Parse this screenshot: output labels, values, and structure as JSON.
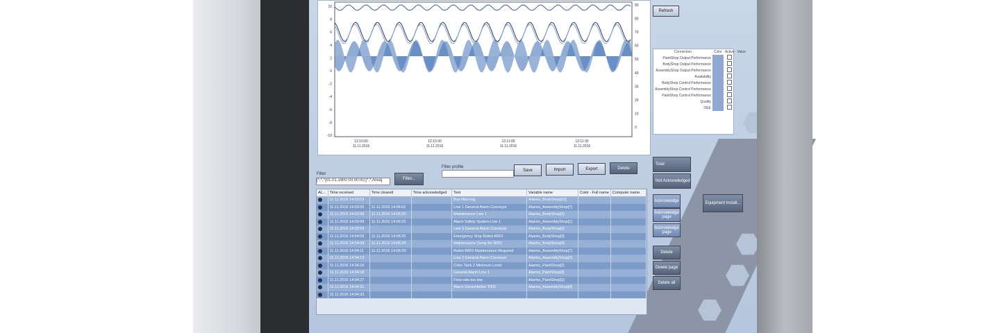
{
  "trend": {
    "y_left_labels": [
      "10",
      "8",
      "6",
      "4",
      "2",
      "0",
      "-2",
      "-4",
      "-6",
      "-8",
      "-10"
    ],
    "y_right_labels": [
      "90",
      "80",
      "70",
      "60",
      "50",
      "40",
      "30",
      "20",
      "10",
      "0"
    ],
    "x_labels": [
      {
        "time": "12:10:00",
        "date": "11.11.2016"
      },
      {
        "time": "12:10:30",
        "date": "11.11.2016"
      },
      {
        "time": "12:11:00",
        "date": "11.11.2016"
      },
      {
        "time": "12:11:30",
        "date": "11.11.2016"
      }
    ]
  },
  "trend_controls": {
    "refresh": "Refresh"
  },
  "legend_table": {
    "headers": [
      "Connection",
      "Color",
      "Active",
      "Value"
    ],
    "rows": [
      "PaintShop Output Performance",
      "BodyShop Output Performance",
      "AssemblyShop Output Performance",
      "Availability",
      "BodyShop Control Performance",
      "AssemblyShop Control Performance",
      "PaintShop Control Performance",
      "Quality",
      "OEE"
    ]
  },
  "filter": {
    "label": "Filter",
    "value": "[*,*,*]01.01.1900 00:00:00;[*,*,Area]",
    "button": "Filter...",
    "profile_label": "Filter profile",
    "buttons": [
      "Save",
      "Import",
      "Export",
      "Delete"
    ]
  },
  "alarm_table": {
    "headers": [
      "AL...",
      "Time received",
      "Time cleared",
      "Time acknowledged",
      "Text",
      "Variable name",
      "Color - Full name",
      "Computer name"
    ],
    "rows": [
      {
        "received": "11.11.2016 14:03:53",
        "text": "Bus Warning",
        "variable": "Alarms_BodyShop[10]"
      },
      {
        "received": "11.11.2016 14:03:55",
        "cleared": "11.11.2016 14:06:02",
        "text": "Line 1 General Alarm Conveyor",
        "variable": "Alarms_AssemblyShop[7]"
      },
      {
        "received": "11.11.2016 14:03:56",
        "cleared": "11.11.2016 14:06:20",
        "text": "Maintenance Line 1",
        "variable": "Alarms_BodyShop[1]"
      },
      {
        "received": "11.11.2016 14:03:58",
        "cleared": "11.11.2016 14:06:25",
        "text": "Alarm Safety System Line 1",
        "variable": "Alarms_AssemblyShop[1]"
      },
      {
        "received": "11.11.2016 14:03:59",
        "text": "Line 3 General Alarm Conveyor",
        "variable": "Alarms_BodyShop[2]"
      },
      {
        "received": "11.11.2016 14:04:05",
        "cleared": "11.11.2016 14:06:25",
        "text": "Emergency Stop Robot R001",
        "variable": "Alarms_BodyShop[3]"
      },
      {
        "received": "11.11.2016 14:04:09",
        "cleared": "11.11.2016 14:06:34",
        "text": "Maintenance Comp for R001",
        "variable": "Alarms_BodyShop[4]"
      },
      {
        "received": "11.11.2016 14:04:11",
        "cleared": "11.11.2016 14:06:29",
        "text": "Robot R001 Maintenance Required",
        "variable": "Alarms_AssemblyShop[7]"
      },
      {
        "received": "11.11.2016 14:04:13",
        "text": "Line 2 General Alarm Conveyor",
        "variable": "Alarms_AssemblyShop[3]"
      },
      {
        "received": "11.11.2016 14:04:16",
        "text": "Color Tank 2 Minimum Level",
        "variable": "Alarms_PaintShop[2]"
      },
      {
        "received": "11.11.2016 14:04:18",
        "text": "General Alarm Line 1",
        "variable": "Alarms_PaintShop[3]"
      },
      {
        "received": "11.11.2016 14:04:27",
        "text": "Flow rate too low",
        "variable": "Alarms_PaintShop[1]"
      },
      {
        "received": "11.11.2016 14:04:31",
        "text": "Alarm Sensorfehler T002",
        "variable": "Alarms_AssemblyShop[4]"
      },
      {
        "received": "11.11.2016 14:04:33"
      }
    ]
  },
  "side_panel": {
    "total_label": "Total",
    "not_ack_label": "Not Acknowledged",
    "buttons": [
      "Acknowledge",
      "Acknowledge page",
      "Acknowledge page",
      "Delete",
      "Delete page",
      "Delete all"
    ],
    "equipment": "Equipment Install..."
  }
}
